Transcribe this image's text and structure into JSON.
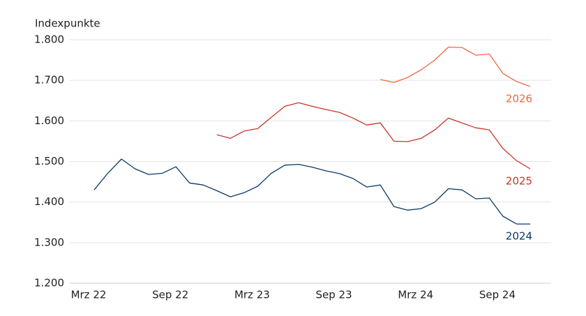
{
  "chart_data": {
    "type": "line",
    "y_axis_label": "Indexpunkte",
    "categories": [
      "Mrz 22",
      null,
      null,
      null,
      null,
      null,
      "Sep 22",
      null,
      null,
      null,
      null,
      null,
      "Mrz 23",
      null,
      null,
      null,
      null,
      null,
      "Sep 23",
      null,
      null,
      null,
      null,
      null,
      "Mrz 24",
      null,
      null,
      null,
      null,
      null,
      "Sep 24",
      null,
      null
    ],
    "series": [
      {
        "name": "2024",
        "color": "#0b3966",
        "values": [
          1430,
          1471,
          1506,
          1482,
          1468,
          1471,
          1487,
          1447,
          1442,
          1428,
          1413,
          1423,
          1439,
          1471,
          1491,
          1493,
          1486,
          1477,
          1470,
          1458,
          1437,
          1442,
          1389,
          1380,
          1384,
          1400,
          1433,
          1430,
          1408,
          1410,
          1365,
          1346,
          1346
        ]
      },
      {
        "name": "2025",
        "color": "#c9352a",
        "values": [
          null,
          null,
          null,
          null,
          null,
          null,
          null,
          null,
          null,
          1566,
          1557,
          1575,
          1581,
          1609,
          1636,
          1645,
          1636,
          1628,
          1621,
          1607,
          1590,
          1595,
          1550,
          1549,
          1557,
          1578,
          1607,
          1595,
          1583,
          1578,
          1532,
          1502,
          1482
        ]
      },
      {
        "name": "2026",
        "color": "#f2673f",
        "values": [
          null,
          null,
          null,
          null,
          null,
          null,
          null,
          null,
          null,
          null,
          null,
          null,
          null,
          null,
          null,
          null,
          null,
          null,
          null,
          null,
          null,
          1702,
          1695,
          1707,
          1726,
          1750,
          1782,
          1781,
          1762,
          1765,
          1717,
          1697,
          1685
        ]
      }
    ],
    "ylim": [
      1200,
      1800
    ],
    "yticks": [
      {
        "value": 1200,
        "label": "1.200"
      },
      {
        "value": 1300,
        "label": "1.300"
      },
      {
        "value": 1400,
        "label": "1.400"
      },
      {
        "value": 1500,
        "label": "1.500"
      },
      {
        "value": 1600,
        "label": "1.600"
      },
      {
        "value": 1700,
        "label": "1.700"
      },
      {
        "value": 1800,
        "label": "1.800"
      }
    ],
    "grid": true
  }
}
